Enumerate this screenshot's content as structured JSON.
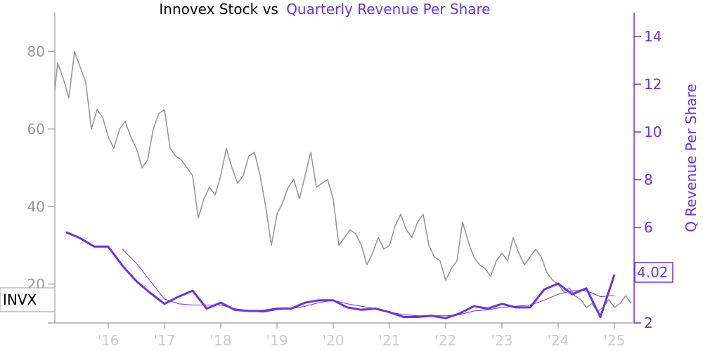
{
  "chart_data": {
    "type": "line",
    "title": {
      "prefix": "Innovex Stock vs",
      "highlight": "Quarterly Revenue Per Share"
    },
    "xlabel": "",
    "ylabel_left": "",
    "ylabel_right": "Q Revenue Per Share",
    "x_tick_labels": [
      "'16",
      "'17",
      "'18",
      "'19",
      "'20",
      "'21",
      "'22",
      "'23",
      "'24",
      "'25"
    ],
    "x_range": [
      2015.05,
      2025.35
    ],
    "y_left": {
      "range": [
        10,
        90
      ],
      "ticks": [
        20,
        40,
        60,
        80
      ]
    },
    "y_right": {
      "range": [
        2,
        15
      ],
      "ticks": [
        2,
        4,
        6,
        8,
        10,
        12,
        14
      ]
    },
    "ticker_label": "INVX",
    "last_value_label": "4.02",
    "colors": {
      "stock": "#999999",
      "revenue": "#6633ee",
      "left_axis": "#999999",
      "x_axis_labels": "#cccccc"
    },
    "series": [
      {
        "name": "INVX",
        "axis": "left",
        "x": [
          2015.05,
          2015.1,
          2015.2,
          2015.3,
          2015.4,
          2015.5,
          2015.6,
          2015.7,
          2015.8,
          2015.9,
          2016.0,
          2016.1,
          2016.2,
          2016.3,
          2016.4,
          2016.5,
          2016.6,
          2016.7,
          2016.8,
          2016.9,
          2017.0,
          2017.1,
          2017.2,
          2017.3,
          2017.4,
          2017.5,
          2017.6,
          2017.7,
          2017.8,
          2017.9,
          2018.0,
          2018.1,
          2018.2,
          2018.3,
          2018.4,
          2018.5,
          2018.6,
          2018.7,
          2018.8,
          2018.9,
          2019.0,
          2019.1,
          2019.2,
          2019.3,
          2019.4,
          2019.5,
          2019.6,
          2019.7,
          2019.8,
          2019.9,
          2020.0,
          2020.1,
          2020.2,
          2020.3,
          2020.4,
          2020.5,
          2020.6,
          2020.7,
          2020.8,
          2020.9,
          2021.0,
          2021.1,
          2021.2,
          2021.3,
          2021.4,
          2021.5,
          2021.6,
          2021.7,
          2021.8,
          2021.9,
          2022.0,
          2022.1,
          2022.2,
          2022.3,
          2022.4,
          2022.5,
          2022.6,
          2022.7,
          2022.8,
          2022.9,
          2023.0,
          2023.1,
          2023.2,
          2023.3,
          2023.4,
          2023.5,
          2023.6,
          2023.7,
          2023.8,
          2023.9,
          2024.0,
          2024.1,
          2024.2,
          2024.3,
          2024.4,
          2024.5,
          2024.6,
          2024.7,
          2024.8,
          2024.9,
          2025.0,
          2025.1,
          2025.2,
          2025.3
        ],
        "values": [
          70,
          77,
          73,
          68,
          80,
          76,
          72,
          60,
          65,
          63,
          58,
          55,
          60,
          62,
          58,
          55,
          50,
          52,
          60,
          64,
          65,
          55,
          53,
          52,
          50,
          48,
          37,
          42,
          45,
          43,
          48,
          55,
          50,
          46,
          48,
          53,
          54,
          48,
          40,
          30,
          38,
          41,
          45,
          47,
          42,
          48,
          54,
          45,
          46,
          47,
          42,
          30,
          32,
          34,
          33,
          30,
          25,
          28,
          32,
          29,
          30,
          35,
          38,
          34,
          32,
          36,
          38,
          30,
          27,
          26,
          21,
          24,
          26,
          36,
          31,
          27,
          25,
          24,
          22,
          26,
          28,
          26,
          32,
          28,
          25,
          27,
          29,
          27,
          23,
          21,
          20,
          18,
          19,
          17,
          16,
          14,
          15,
          13,
          14,
          16,
          14,
          15,
          17,
          15
        ]
      },
      {
        "name": "Quarterly Revenue Per Share",
        "axis": "right",
        "x": [
          2015.25,
          2015.5,
          2015.75,
          2016.0,
          2016.25,
          2016.5,
          2016.75,
          2017.0,
          2017.25,
          2017.5,
          2017.75,
          2018.0,
          2018.25,
          2018.5,
          2018.75,
          2019.0,
          2019.25,
          2019.5,
          2019.75,
          2020.0,
          2020.25,
          2020.5,
          2020.75,
          2021.0,
          2021.25,
          2021.5,
          2021.75,
          2022.0,
          2022.25,
          2022.5,
          2022.75,
          2023.0,
          2023.25,
          2023.5,
          2023.75,
          2024.0,
          2024.25,
          2024.5,
          2024.75,
          2025.0
        ],
        "values": [
          5.8,
          5.55,
          5.2,
          5.2,
          4.4,
          3.75,
          3.25,
          2.8,
          3.1,
          3.35,
          2.6,
          2.85,
          2.55,
          2.5,
          2.5,
          2.6,
          2.6,
          2.85,
          2.95,
          2.95,
          2.65,
          2.55,
          2.6,
          2.45,
          2.25,
          2.25,
          2.3,
          2.2,
          2.4,
          2.7,
          2.6,
          2.8,
          2.65,
          2.65,
          3.4,
          3.65,
          3.2,
          3.45,
          2.25,
          4.02
        ]
      },
      {
        "name": "",
        "axis": "right",
        "x": [
          2016.25,
          2016.5,
          2016.75,
          2017.0,
          2017.25,
          2017.5,
          2017.75,
          2018.0,
          2018.25,
          2018.5,
          2018.75,
          2019.0,
          2019.25,
          2019.5,
          2019.75,
          2020.0,
          2020.25,
          2020.5,
          2020.75,
          2021.0,
          2021.25,
          2021.5,
          2021.75,
          2022.0,
          2022.25,
          2022.5,
          2022.75,
          2023.0,
          2023.25,
          2023.5,
          2023.75,
          2024.0,
          2024.25,
          2024.5,
          2024.75,
          2025.0
        ],
        "values": [
          5.1,
          4.5,
          3.75,
          3.0,
          2.8,
          2.75,
          2.75,
          2.75,
          2.6,
          2.5,
          2.45,
          2.55,
          2.6,
          2.7,
          2.85,
          2.95,
          2.8,
          2.7,
          2.6,
          2.45,
          2.35,
          2.3,
          2.3,
          2.3,
          2.35,
          2.5,
          2.55,
          2.65,
          2.7,
          2.75,
          2.95,
          3.2,
          3.35,
          3.35,
          3.1,
          3.15
        ]
      }
    ]
  }
}
